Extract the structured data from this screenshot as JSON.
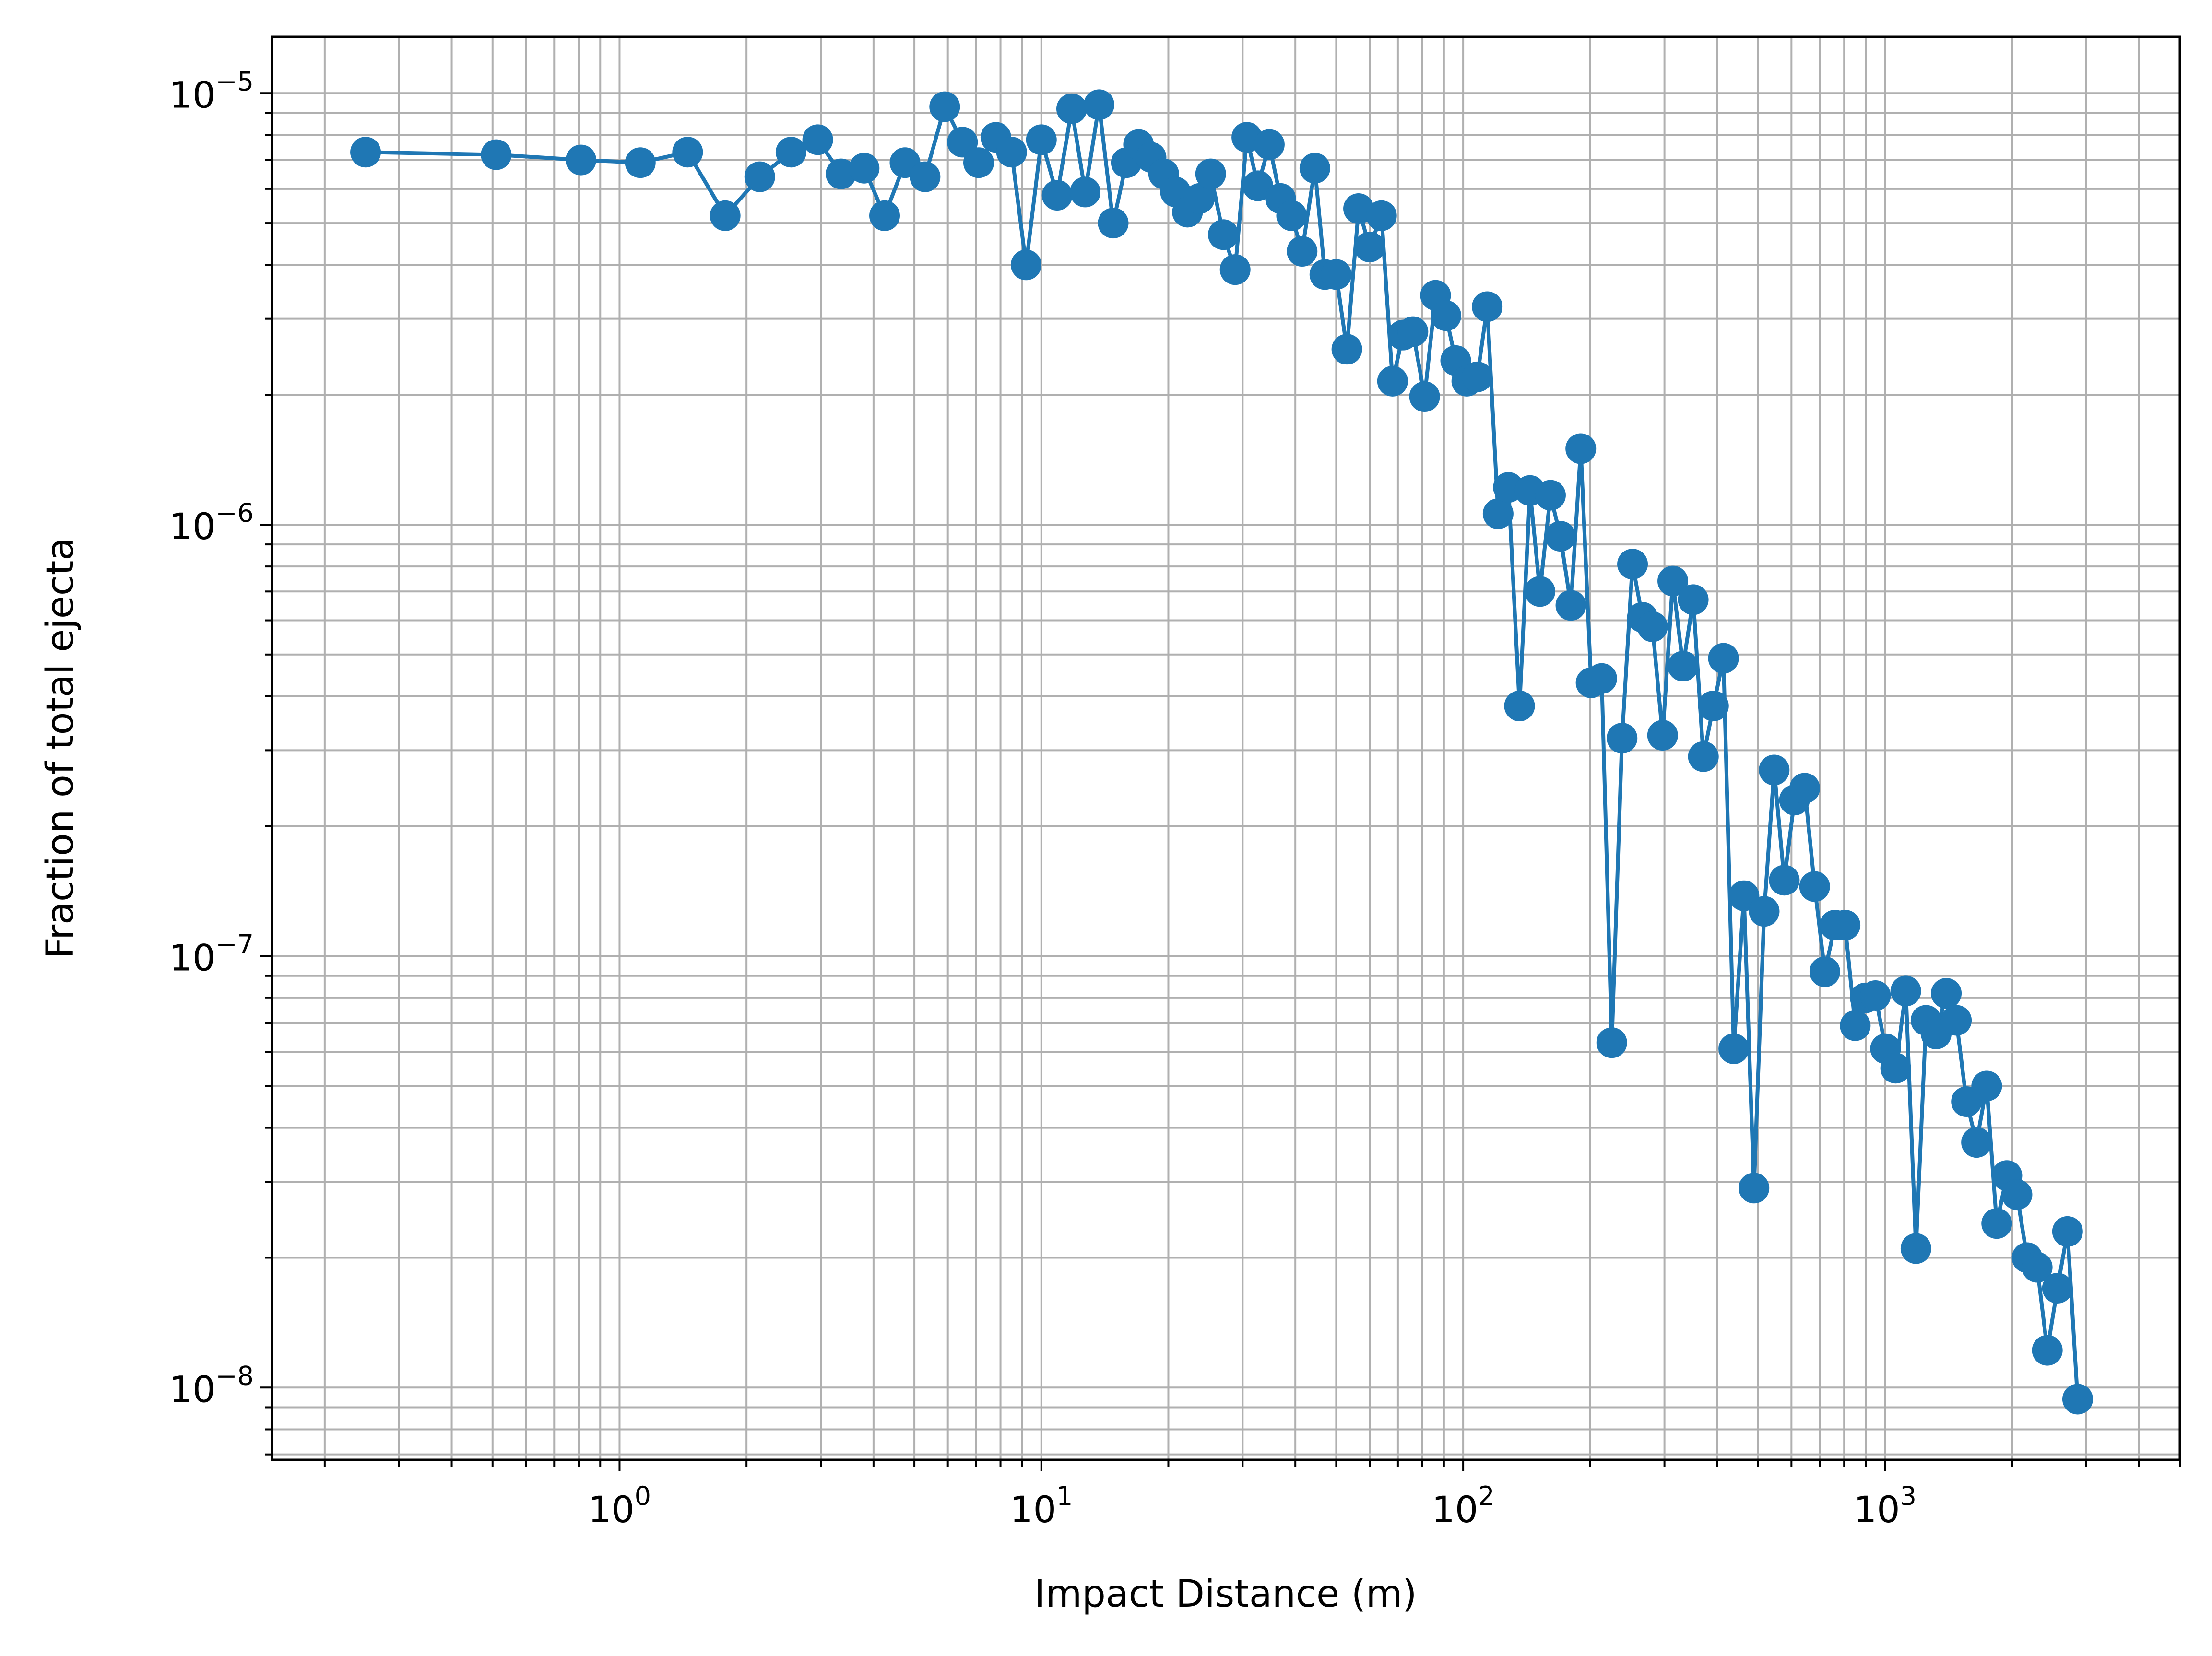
{
  "chart_data": {
    "type": "line",
    "title": "",
    "xlabel": "Impact Distance (m)",
    "ylabel": "Fraction of total ejecta",
    "xscale": "log",
    "yscale": "log",
    "xlim": [
      0.15,
      5000
    ],
    "ylim": [
      6.8e-09,
      1.35e-05
    ],
    "grid": "major and minor",
    "x_tick_labels": [
      {
        "base": "10",
        "exp": "0",
        "value": 1
      },
      {
        "base": "10",
        "exp": "1",
        "value": 10
      },
      {
        "base": "10",
        "exp": "2",
        "value": 100
      },
      {
        "base": "10",
        "exp": "3",
        "value": 1000
      }
    ],
    "y_tick_labels": [
      {
        "base": "10",
        "exp": "−5",
        "value": 1e-05
      },
      {
        "base": "10",
        "exp": "−6",
        "value": 1e-06
      },
      {
        "base": "10",
        "exp": "−7",
        "value": 1e-07
      },
      {
        "base": "10",
        "exp": "−8",
        "value": 1e-08
      }
    ],
    "series": [
      {
        "color": "#1f77b4",
        "marker": "circle",
        "points": [
          [
            0.25,
            7.3e-06
          ],
          [
            0.51,
            7.2e-06
          ],
          [
            0.81,
            7e-06
          ],
          [
            1.12,
            6.9e-06
          ],
          [
            1.45,
            7.3e-06
          ],
          [
            1.78,
            5.2e-06
          ],
          [
            2.15,
            6.4e-06
          ],
          [
            2.55,
            7.3e-06
          ],
          [
            2.95,
            7.8e-06
          ],
          [
            3.35,
            6.5e-06
          ],
          [
            3.8,
            6.7e-06
          ],
          [
            4.25,
            5.2e-06
          ],
          [
            4.75,
            6.9e-06
          ],
          [
            5.3,
            6.4e-06
          ],
          [
            5.9,
            9.3e-06
          ],
          [
            6.5,
            7.7e-06
          ],
          [
            7.1,
            6.9e-06
          ],
          [
            7.8,
            7.9e-06
          ],
          [
            8.5,
            7.3e-06
          ],
          [
            9.2,
            4e-06
          ],
          [
            10.0,
            7.8e-06
          ],
          [
            10.9,
            5.8e-06
          ],
          [
            11.8,
            9.2e-06
          ],
          [
            12.7,
            5.9e-06
          ],
          [
            13.7,
            9.4e-06
          ],
          [
            14.8,
            5e-06
          ],
          [
            15.9,
            6.9e-06
          ],
          [
            17.0,
            7.6e-06
          ],
          [
            18.2,
            7.1e-06
          ],
          [
            19.5,
            6.5e-06
          ],
          [
            20.8,
            5.9e-06
          ],
          [
            22.2,
            5.3e-06
          ],
          [
            23.7,
            5.7e-06
          ],
          [
            25.2,
            6.5e-06
          ],
          [
            27.0,
            4.7e-06
          ],
          [
            28.8,
            3.9e-06
          ],
          [
            30.7,
            7.9e-06
          ],
          [
            32.6,
            6.1e-06
          ],
          [
            34.7,
            7.6e-06
          ],
          [
            36.9,
            5.7e-06
          ],
          [
            39.2,
            5.2e-06
          ],
          [
            41.5,
            4.3e-06
          ],
          [
            44.5,
            6.7e-06
          ],
          [
            47.0,
            3.8e-06
          ],
          [
            50.0,
            3.8e-06
          ],
          [
            53.0,
            2.55e-06
          ],
          [
            56.5,
            5.4e-06
          ],
          [
            60.0,
            4.4e-06
          ],
          [
            64.0,
            5.2e-06
          ],
          [
            68.0,
            2.15e-06
          ],
          [
            72.0,
            2.75e-06
          ],
          [
            76.0,
            2.8e-06
          ],
          [
            81.0,
            1.98e-06
          ],
          [
            86.0,
            3.4e-06
          ],
          [
            91.0,
            3.05e-06
          ],
          [
            96.0,
            2.4e-06
          ],
          [
            102.0,
            2.15e-06
          ],
          [
            108.0,
            2.2e-06
          ],
          [
            114.0,
            3.2e-06
          ],
          [
            121.0,
            1.06e-06
          ],
          [
            128.0,
            1.22e-06
          ],
          [
            136.0,
            3.8e-07
          ],
          [
            144.0,
            1.2e-06
          ],
          [
            152.0,
            7e-07
          ],
          [
            161.0,
            1.17e-06
          ],
          [
            170.0,
            9.4e-07
          ],
          [
            180.0,
            6.5e-07
          ],
          [
            190.0,
            1.5e-06
          ],
          [
            201.0,
            4.3e-07
          ],
          [
            213.0,
            4.4e-07
          ],
          [
            225.0,
            6.3e-08
          ],
          [
            238.0,
            3.2e-07
          ],
          [
            252.0,
            8.1e-07
          ],
          [
            266.0,
            6.1e-07
          ],
          [
            281.0,
            5.8e-07
          ],
          [
            297.0,
            3.25e-07
          ],
          [
            314.0,
            7.4e-07
          ],
          [
            332.0,
            4.7e-07
          ],
          [
            351.0,
            6.7e-07
          ],
          [
            371.0,
            2.9e-07
          ],
          [
            392.0,
            3.8e-07
          ],
          [
            414.0,
            4.9e-07
          ],
          [
            438.0,
            6.1e-08
          ],
          [
            463.0,
            1.38e-07
          ],
          [
            489.0,
            2.9e-08
          ],
          [
            517.0,
            1.27e-07
          ],
          [
            546.0,
            2.7e-07
          ],
          [
            577.0,
            1.5e-07
          ],
          [
            610.0,
            2.3e-07
          ],
          [
            645.0,
            2.45e-07
          ],
          [
            681.0,
            1.45e-07
          ],
          [
            720.0,
            9.2e-08
          ],
          [
            761.0,
            1.18e-07
          ],
          [
            804.0,
            1.18e-07
          ],
          [
            850.0,
            6.9e-08
          ],
          [
            898.0,
            8e-08
          ],
          [
            949.0,
            8.1e-08
          ],
          [
            1003.0,
            6.1e-08
          ],
          [
            1060.0,
            5.5e-08
          ],
          [
            1120.0,
            8.3e-08
          ],
          [
            1184.0,
            2.1e-08
          ],
          [
            1251.0,
            7.1e-08
          ],
          [
            1322.0,
            6.6e-08
          ],
          [
            1397.0,
            8.2e-08
          ],
          [
            1476.0,
            7.1e-08
          ],
          [
            1560.0,
            4.6e-08
          ],
          [
            1648.0,
            3.7e-08
          ],
          [
            1742.0,
            5e-08
          ],
          [
            1840.0,
            2.4e-08
          ],
          [
            1945.0,
            3.1e-08
          ],
          [
            2055.0,
            2.8e-08
          ],
          [
            2172.0,
            2e-08
          ],
          [
            2295.0,
            1.9e-08
          ],
          [
            2425.0,
            1.22e-08
          ],
          [
            2563.0,
            1.7e-08
          ],
          [
            2708.0,
            2.3e-08
          ],
          [
            2862.0,
            9.4e-09
          ]
        ]
      }
    ]
  }
}
